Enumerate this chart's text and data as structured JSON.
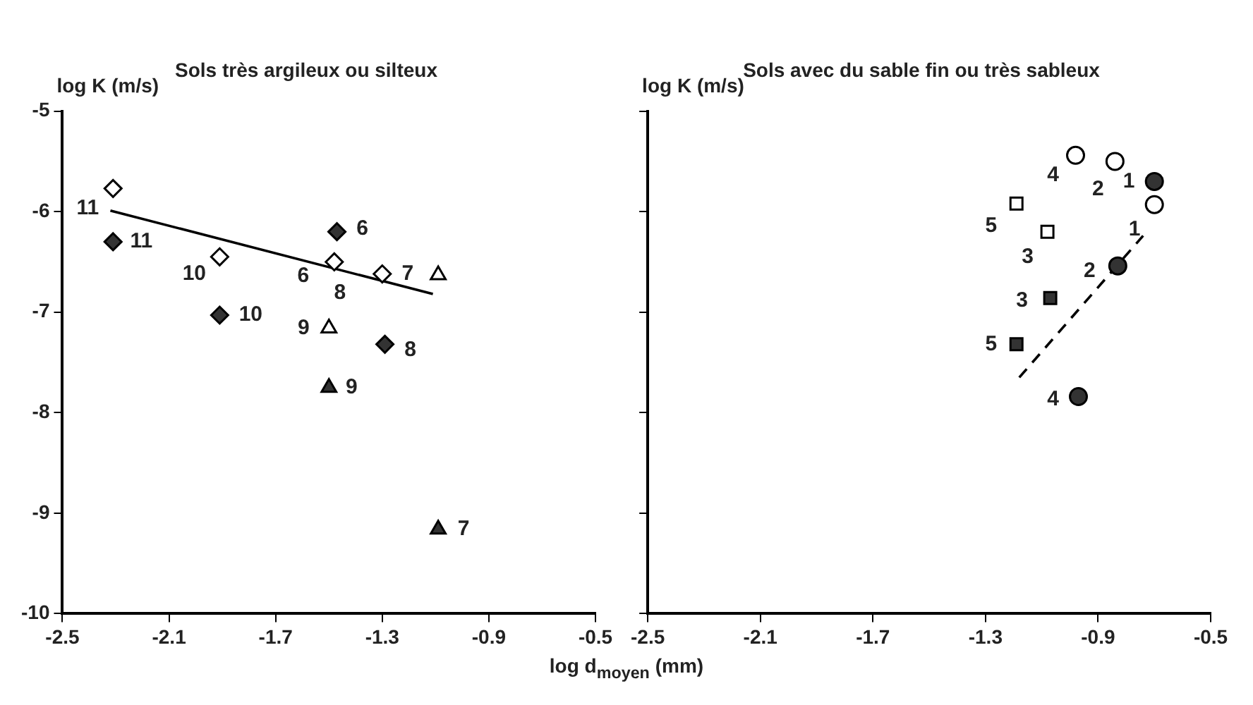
{
  "chart_data": [
    {
      "type": "scatter",
      "title": "Sols très argileux ou silteux",
      "ylabel": "log K (m/s)",
      "xlabel": "log d$_{moyen}$ (mm)",
      "xlim": [
        -2.5,
        -0.5
      ],
      "xticks": [
        -2.5,
        -2.1,
        -1.7,
        -1.3,
        -0.9,
        -0.5
      ],
      "ylim": [
        -10,
        -5
      ],
      "yticks": [
        -10,
        -9,
        -8,
        -7,
        -6,
        -5
      ],
      "grid": false,
      "legend": false,
      "series": [
        {
          "marker": "diamond",
          "color": "#ffffff",
          "x": [
            -2.31,
            -1.91,
            -1.48,
            -1.3
          ],
          "values": [
            -5.77,
            -6.45,
            -6.5,
            -6.62
          ]
        },
        {
          "marker": "diamond",
          "color": "#333333",
          "x": [
            -2.31,
            -1.91,
            -1.47,
            -1.29
          ],
          "values": [
            -6.3,
            -7.03,
            -6.2,
            -7.32
          ]
        },
        {
          "marker": "triangle",
          "color": "#ffffff",
          "x": [
            -1.5,
            -1.09
          ],
          "values": [
            -7.16,
            -6.63
          ]
        },
        {
          "marker": "triangle",
          "color": "#333333",
          "x": [
            -1.5,
            -1.09
          ],
          "values": [
            -7.75,
            -9.16
          ]
        },
        {
          "type": "line",
          "color": "#000000",
          "line_style": "solid",
          "x": [
            -2.32,
            -1.11
          ],
          "values": [
            -5.99,
            -6.82
          ]
        }
      ],
      "annotations": [
        {
          "text": "11",
          "x": -2.31,
          "y": -5.77
        },
        {
          "text": "11",
          "x": -2.31,
          "y": -6.3
        },
        {
          "text": "10",
          "x": -1.91,
          "y": -6.45
        },
        {
          "text": "10",
          "x": -1.91,
          "y": -7.03
        },
        {
          "text": "6",
          "x": -1.47,
          "y": -6.2
        },
        {
          "text": "6",
          "x": -1.48,
          "y": -6.5
        },
        {
          "text": "8",
          "x": -1.48,
          "y": -6.5
        },
        {
          "text": "7",
          "x": -1.3,
          "y": -6.62
        },
        {
          "text": "9",
          "x": -1.5,
          "y": -7.16
        },
        {
          "text": "8",
          "x": -1.29,
          "y": -7.32
        },
        {
          "text": "9",
          "x": -1.5,
          "y": -7.75
        },
        {
          "text": "7",
          "x": -1.09,
          "y": -9.16
        }
      ]
    },
    {
      "type": "scatter",
      "title": "Sols avec du sable fin ou très sableux",
      "ylabel": "log K (m/s)",
      "xlim": [
        -2.5,
        -0.5
      ],
      "xticks": [
        -2.5,
        -2.1,
        -1.7,
        -1.3,
        -0.9,
        -0.5
      ],
      "ylim": [
        -10,
        -5
      ],
      "yticks": [
        -10,
        -9,
        -8,
        -7,
        -6,
        -5
      ],
      "tick_labels": "x",
      "grid": false,
      "legend": false,
      "series": [
        {
          "marker": "circle",
          "color": "#ffffff",
          "x": [
            -0.98,
            -0.84,
            -0.7
          ],
          "values": [
            -5.44,
            -5.5,
            -5.93
          ]
        },
        {
          "marker": "circle",
          "color": "#333333",
          "x": [
            -0.7,
            -0.83,
            -0.97
          ],
          "values": [
            -5.7,
            -6.54,
            -7.84
          ]
        },
        {
          "marker": "square",
          "color": "#ffffff",
          "x": [
            -1.19,
            -1.08
          ],
          "values": [
            -5.92,
            -6.2
          ]
        },
        {
          "marker": "square",
          "color": "#333333",
          "x": [
            -1.07,
            -1.19
          ],
          "values": [
            -6.86,
            -7.32
          ]
        },
        {
          "type": "line",
          "color": "#000000",
          "line_style": "dashed",
          "x": [
            -1.18,
            -0.74
          ],
          "values": [
            -7.65,
            -6.24
          ]
        }
      ],
      "annotations": [
        {
          "text": "4",
          "x": -0.98,
          "y": -5.44
        },
        {
          "text": "2",
          "x": -0.84,
          "y": -5.5
        },
        {
          "text": "1",
          "x": -0.7,
          "y": -5.7
        },
        {
          "text": "1",
          "x": -0.7,
          "y": -5.93
        },
        {
          "text": "5",
          "x": -1.19,
          "y": -5.92
        },
        {
          "text": "3",
          "x": -1.08,
          "y": -6.2
        },
        {
          "text": "2",
          "x": -0.83,
          "y": -6.54
        },
        {
          "text": "3",
          "x": -1.07,
          "y": -6.86
        },
        {
          "text": "5",
          "x": -1.19,
          "y": -7.32
        },
        {
          "text": "4",
          "x": -0.97,
          "y": -7.84
        }
      ]
    }
  ]
}
